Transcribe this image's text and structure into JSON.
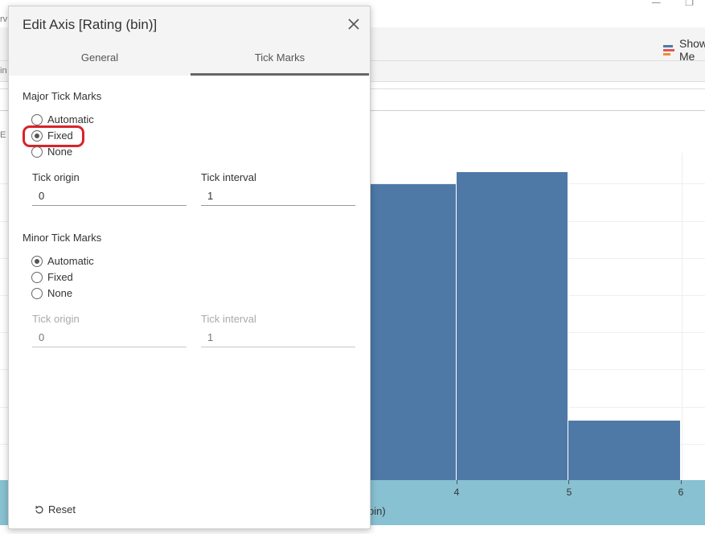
{
  "background": {
    "toolbar": {
      "show_me_label": "Show Me"
    },
    "left_fragments": [
      "rv",
      "in",
      "E"
    ],
    "chart": {
      "tick_labels": [
        "4",
        "5",
        "6"
      ],
      "axis_title_fragment": "bin)",
      "bar_color": "#4e79a7",
      "axis_band_color": "#88c1d1"
    }
  },
  "dialog": {
    "title": "Edit Axis [Rating (bin)]",
    "tabs": [
      {
        "label": "General",
        "active": false
      },
      {
        "label": "Tick Marks",
        "active": true
      }
    ],
    "major": {
      "title": "Major Tick Marks",
      "options": [
        {
          "label": "Automatic",
          "checked": false
        },
        {
          "label": "Fixed",
          "checked": true
        },
        {
          "label": "None",
          "checked": false
        }
      ],
      "tick_origin_label": "Tick origin",
      "tick_origin_value": "0",
      "tick_interval_label": "Tick interval",
      "tick_interval_value": "1"
    },
    "minor": {
      "title": "Minor Tick Marks",
      "options": [
        {
          "label": "Automatic",
          "checked": true
        },
        {
          "label": "Fixed",
          "checked": false
        },
        {
          "label": "None",
          "checked": false
        }
      ],
      "tick_origin_label": "Tick origin",
      "tick_origin_placeholder": "0",
      "tick_interval_label": "Tick interval",
      "tick_interval_placeholder": "1"
    },
    "reset_label": "Reset",
    "highlight_color": "#d8232a"
  }
}
